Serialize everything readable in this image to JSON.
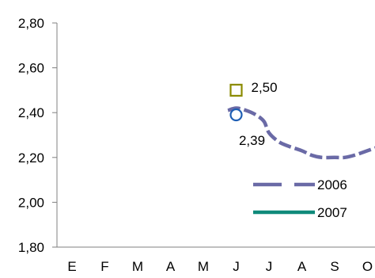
{
  "chart_data": {
    "type": "line",
    "categories": [
      "E",
      "F",
      "M",
      "A",
      "M",
      "J",
      "J",
      "A",
      "S",
      "O"
    ],
    "ylim": [
      1.8,
      2.8
    ],
    "yticks": [
      "1,80",
      "2,00",
      "2,20",
      "2,40",
      "2,60",
      "2,80"
    ],
    "ytick_values": [
      1.8,
      2.0,
      2.2,
      2.4,
      2.6,
      2.8
    ],
    "grid": false,
    "legend_position": "bottom-right",
    "series": [
      {
        "name": "2006",
        "color": "#6a6aa6",
        "style": "dashed",
        "x": [
          4.75,
          5.0,
          5.3,
          5.6,
          5.85,
          6.0,
          6.3,
          6.6,
          7.0,
          7.3,
          7.6,
          8.0,
          8.3,
          8.6,
          9.0,
          9.4
        ],
        "y": [
          2.41,
          2.42,
          2.41,
          2.39,
          2.36,
          2.31,
          2.27,
          2.25,
          2.23,
          2.21,
          2.2,
          2.2,
          2.2,
          2.21,
          2.23,
          2.25
        ]
      },
      {
        "name": "2007",
        "color": "#0f8a7a",
        "style": "solid",
        "x": [],
        "y": []
      }
    ],
    "annotations": [
      {
        "marker": "square",
        "color": "#8b8b00",
        "x": 5.0,
        "y": 2.5,
        "label": "2,50",
        "label_pos": "right"
      },
      {
        "marker": "circle",
        "color": "#1f5fb4",
        "x": 5.0,
        "y": 2.39,
        "label": "2,39",
        "label_pos": "below"
      }
    ]
  }
}
